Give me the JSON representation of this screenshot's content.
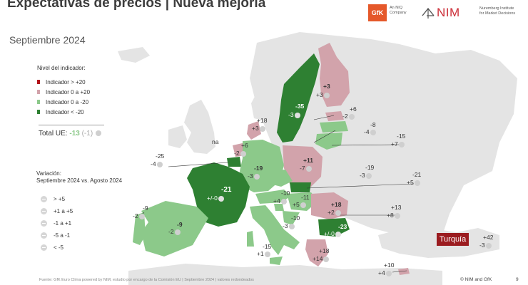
{
  "title": "Expectativas de precios | Nueva mejoría",
  "period": "Septiembre 2024",
  "logos": {
    "gfk": "GfK",
    "gfk_sub1": "An NIQ",
    "gfk_sub2": "Company",
    "nim": "NIM",
    "nim_sub1": "Nuremberg Institute",
    "nim_sub2": "for Market Decisions"
  },
  "legend": {
    "title": "Nivel del indicador:",
    "items": [
      {
        "label": "Indicador > +20",
        "color": "#b3141c"
      },
      {
        "label": "Indicador 0 a +20",
        "color": "#d2a3ab"
      },
      {
        "label": "Indicador 0 a -20",
        "color": "#8cc98a"
      },
      {
        "label": "Indicador < -20",
        "color": "#2e8032"
      }
    ]
  },
  "total": {
    "label": "Total UE:",
    "value": "-13",
    "change": "(-1)"
  },
  "variation": {
    "title_line1": "Variación:",
    "title_line2": "Septiembre 2024 vs. Agosto 2024",
    "items": [
      {
        "label": "> +5",
        "icon": "arrow-up-icon"
      },
      {
        "label": "+1 a +5",
        "icon": "arrow-up-right-icon"
      },
      {
        "label": "-1 a +1",
        "icon": "arrow-right-icon"
      },
      {
        "label": "-5 a -1",
        "icon": "arrow-down-right-icon"
      },
      {
        "label": "< -5",
        "icon": "arrow-down-icon"
      }
    ]
  },
  "no_data": "na",
  "countries": [
    {
      "id": "sweden",
      "value": "-35",
      "change": "-3"
    },
    {
      "id": "finland",
      "value": "+3",
      "change": "+3"
    },
    {
      "id": "estonia",
      "value": "+6",
      "change": "-2"
    },
    {
      "id": "latvia",
      "value": "-8",
      "change": "-4"
    },
    {
      "id": "lithuania",
      "value": "-15",
      "change": "+7"
    },
    {
      "id": "denmark",
      "value": "+18",
      "change": "+3"
    },
    {
      "id": "netherlands",
      "value": "+6",
      "change": "-2"
    },
    {
      "id": "belgium",
      "value": "-25",
      "change": "-4"
    },
    {
      "id": "germany",
      "value": "-19",
      "change": "-3"
    },
    {
      "id": "poland",
      "value": "+11",
      "change": "-7"
    },
    {
      "id": "czechia",
      "value": "-19",
      "change": "-3"
    },
    {
      "id": "slovakia",
      "value": "-21",
      "change": "+5"
    },
    {
      "id": "france",
      "value": "-21",
      "change": "+/-0"
    },
    {
      "id": "austria",
      "value": "-10",
      "change": "+4"
    },
    {
      "id": "hungary",
      "value": "-11",
      "change": "+5"
    },
    {
      "id": "slovenia",
      "value": "-10",
      "change": "-3"
    },
    {
      "id": "romania",
      "value": "+18",
      "change": "+2"
    },
    {
      "id": "moldova",
      "value": "+13",
      "change": "+8"
    },
    {
      "id": "bulgaria",
      "value": "-23",
      "change": "+/-0"
    },
    {
      "id": "spain",
      "value": "-9",
      "change": "-2"
    },
    {
      "id": "portugal",
      "value": "-9",
      "change": "-2"
    },
    {
      "id": "italy",
      "value": "-15",
      "change": "+1"
    },
    {
      "id": "greece",
      "value": "+18",
      "change": "+14"
    },
    {
      "id": "cyprus",
      "value": "+10",
      "change": "+4"
    },
    {
      "id": "turkey",
      "value": "+42",
      "change": "-3"
    }
  ],
  "turkey_label": "Turquía",
  "footer": "Fuente: GfK Euro Clima powered by NIM, estudio por encargo de la Comisión EU | Septiembre 2024 | valores redondeados",
  "copyright": "© NIM and GfK",
  "page_number": "9"
}
